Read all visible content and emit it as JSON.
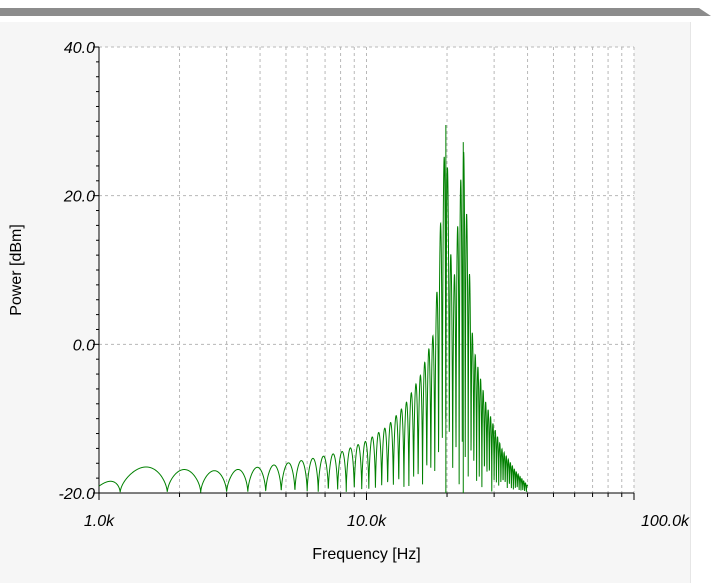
{
  "chart_data": {
    "type": "line",
    "xlabel": "Frequency [Hz]",
    "ylabel": "Power [dBm]",
    "x_scale": "log",
    "xlim": [
      1000,
      100000
    ],
    "ylim": [
      -20,
      40
    ],
    "x_tick_labels": [
      "1.0k",
      "10.0k",
      "100.0k"
    ],
    "y_tick_labels": [
      "40.0",
      "20.0",
      "0.0",
      "-20.0"
    ],
    "grid": true,
    "series": [
      {
        "color": "#008000",
        "peaks": [
          {
            "x": 19800,
            "y": 29.5
          },
          {
            "x": 23000,
            "y": 27.2
          }
        ],
        "envelope_x": [
          1000,
          1200,
          1700,
          2300,
          3000,
          4000,
          5000,
          6000,
          7000,
          8000,
          10000,
          12000,
          14000,
          16000,
          18000,
          19800,
          21000,
          23000,
          25000,
          28000,
          32000,
          36000,
          40000
        ],
        "envelope_y": [
          -19,
          -16.5,
          -16.5,
          -17,
          -17,
          -16.5,
          -16,
          -15.5,
          -15,
          -14.5,
          -13,
          -11,
          -8,
          -4,
          2,
          29.5,
          6,
          27.2,
          0,
          -8,
          -14,
          -17,
          -19
        ]
      }
    ]
  }
}
